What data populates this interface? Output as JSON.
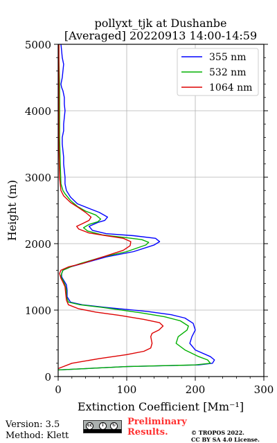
{
  "chart_data": {
    "type": "line",
    "title": "pollyxt_tjk at Dushanbe",
    "subtitle": "[Averaged] 20220913 14:00-14:59",
    "xlabel": "Extinction Coefficient [Mm⁻¹]",
    "ylabel": "Height (m)",
    "xlim": [
      0,
      300
    ],
    "ylim": [
      0,
      5000
    ],
    "xticks": [
      "0",
      "100",
      "200",
      "300"
    ],
    "yticks": [
      "0",
      "1000",
      "2000",
      "3000",
      "4000",
      "5000"
    ],
    "grid": true,
    "legend_position": "top-right",
    "series": [
      {
        "name": "355 nm",
        "color": "#0000ff",
        "points": [
          [
            0,
            100
          ],
          [
            100,
            150
          ],
          [
            205,
            175
          ],
          [
            225,
            200
          ],
          [
            228,
            250
          ],
          [
            222,
            300
          ],
          [
            200,
            400
          ],
          [
            192,
            500
          ],
          [
            195,
            600
          ],
          [
            200,
            700
          ],
          [
            197,
            800
          ],
          [
            185,
            880
          ],
          [
            165,
            930
          ],
          [
            130,
            980
          ],
          [
            70,
            1040
          ],
          [
            35,
            1080
          ],
          [
            18,
            1120
          ],
          [
            13,
            1200
          ],
          [
            13,
            1300
          ],
          [
            12,
            1380
          ],
          [
            8,
            1450
          ],
          [
            5,
            1500
          ],
          [
            5,
            1550
          ],
          [
            7,
            1600
          ],
          [
            18,
            1650
          ],
          [
            35,
            1700
          ],
          [
            70,
            1800
          ],
          [
            110,
            1880
          ],
          [
            140,
            1980
          ],
          [
            148,
            2030
          ],
          [
            142,
            2080
          ],
          [
            110,
            2120
          ],
          [
            70,
            2150
          ],
          [
            50,
            2200
          ],
          [
            45,
            2260
          ],
          [
            58,
            2320
          ],
          [
            68,
            2350
          ],
          [
            72,
            2400
          ],
          [
            60,
            2470
          ],
          [
            45,
            2530
          ],
          [
            28,
            2600
          ],
          [
            18,
            2700
          ],
          [
            12,
            2800
          ],
          [
            10,
            2900
          ],
          [
            10,
            3000
          ],
          [
            9,
            3100
          ],
          [
            8,
            3200
          ],
          [
            8,
            3300
          ],
          [
            7,
            3400
          ],
          [
            6,
            3500
          ],
          [
            6,
            3600
          ],
          [
            8,
            3700
          ],
          [
            8,
            3800
          ],
          [
            9,
            3900
          ],
          [
            10,
            4000
          ],
          [
            9,
            4100
          ],
          [
            9,
            4200
          ],
          [
            7,
            4300
          ],
          [
            5,
            4350
          ],
          [
            4,
            4400
          ],
          [
            6,
            4500
          ],
          [
            7,
            4600
          ],
          [
            8,
            4700
          ],
          [
            6,
            4800
          ],
          [
            5,
            4900
          ],
          [
            4,
            5000
          ]
        ]
      },
      {
        "name": "532 nm",
        "color": "#00b000",
        "points": [
          [
            0,
            100
          ],
          [
            100,
            150
          ],
          [
            200,
            175
          ],
          [
            222,
            200
          ],
          [
            218,
            250
          ],
          [
            205,
            300
          ],
          [
            185,
            400
          ],
          [
            172,
            500
          ],
          [
            175,
            600
          ],
          [
            188,
            700
          ],
          [
            190,
            760
          ],
          [
            178,
            840
          ],
          [
            155,
            900
          ],
          [
            120,
            960
          ],
          [
            65,
            1040
          ],
          [
            32,
            1080
          ],
          [
            15,
            1120
          ],
          [
            12,
            1200
          ],
          [
            12,
            1300
          ],
          [
            10,
            1380
          ],
          [
            7,
            1450
          ],
          [
            4,
            1500
          ],
          [
            5,
            1550
          ],
          [
            7,
            1600
          ],
          [
            18,
            1650
          ],
          [
            32,
            1700
          ],
          [
            65,
            1800
          ],
          [
            100,
            1880
          ],
          [
            128,
            1980
          ],
          [
            132,
            2020
          ],
          [
            122,
            2060
          ],
          [
            100,
            2090
          ],
          [
            65,
            2130
          ],
          [
            43,
            2190
          ],
          [
            37,
            2240
          ],
          [
            45,
            2290
          ],
          [
            58,
            2330
          ],
          [
            62,
            2370
          ],
          [
            55,
            2430
          ],
          [
            40,
            2490
          ],
          [
            28,
            2560
          ],
          [
            18,
            2650
          ],
          [
            10,
            2750
          ],
          [
            7,
            2800
          ],
          [
            4,
            2900
          ],
          [
            3,
            3200
          ],
          [
            2,
            3600
          ],
          [
            2,
            4000
          ],
          [
            2,
            4400
          ],
          [
            1,
            4800
          ],
          [
            1,
            5000
          ]
        ]
      },
      {
        "name": "1064 nm",
        "color": "#dd0000",
        "points": [
          [
            0,
            120
          ],
          [
            20,
            200
          ],
          [
            60,
            270
          ],
          [
            100,
            330
          ],
          [
            125,
            380
          ],
          [
            135,
            430
          ],
          [
            137,
            500
          ],
          [
            135,
            600
          ],
          [
            137,
            650
          ],
          [
            147,
            700
          ],
          [
            153,
            760
          ],
          [
            148,
            810
          ],
          [
            125,
            860
          ],
          [
            90,
            920
          ],
          [
            55,
            970
          ],
          [
            30,
            1020
          ],
          [
            15,
            1080
          ],
          [
            12,
            1150
          ],
          [
            11,
            1250
          ],
          [
            10,
            1350
          ],
          [
            7,
            1420
          ],
          [
            4,
            1480
          ],
          [
            2,
            1550
          ],
          [
            4,
            1600
          ],
          [
            15,
            1650
          ],
          [
            35,
            1700
          ],
          [
            65,
            1800
          ],
          [
            95,
            1900
          ],
          [
            105,
            1970
          ],
          [
            106,
            2030
          ],
          [
            95,
            2080
          ],
          [
            70,
            2120
          ],
          [
            45,
            2160
          ],
          [
            30,
            2220
          ],
          [
            27,
            2260
          ],
          [
            35,
            2300
          ],
          [
            45,
            2350
          ],
          [
            48,
            2400
          ],
          [
            40,
            2470
          ],
          [
            30,
            2540
          ],
          [
            18,
            2620
          ],
          [
            8,
            2720
          ],
          [
            4,
            2800
          ],
          [
            2,
            3000
          ],
          [
            1,
            3500
          ],
          [
            1,
            4000
          ],
          [
            1,
            4500
          ],
          [
            1,
            5000
          ]
        ]
      }
    ]
  },
  "footer": {
    "version": "Version: 3.5",
    "method": "Method: Klett",
    "license_badge_text": "BY SA",
    "license_icons": [
      "cc-icon",
      "by-icon",
      "sa-icon"
    ],
    "preliminary_line1": "Preliminary",
    "preliminary_line2": "Results.",
    "copyright_line1": "© TROPOS 2022.",
    "copyright_line2": "CC BY SA 4.0 License."
  }
}
